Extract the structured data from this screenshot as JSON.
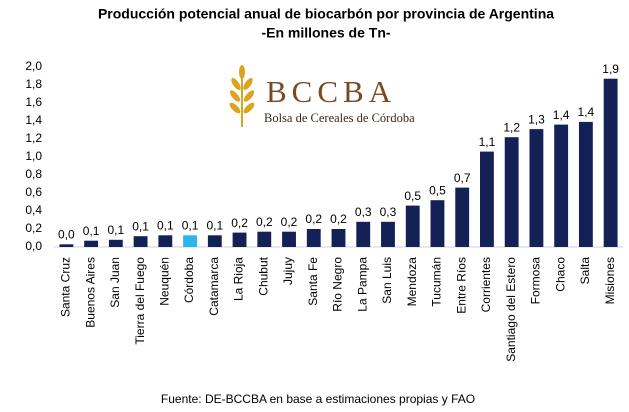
{
  "chart_data": {
    "type": "bar",
    "title": "Producción potencial anual de biocarbón por provincia de Argentina",
    "subtitle": "-En millones de Tn-",
    "source": "Fuente: DE-BCCBA en base a estimaciones propias y FAO",
    "logo": {
      "name": "BCCBA",
      "subtitle": "Bolsa de Cereales de Córdoba"
    },
    "categories": [
      "Santa Cruz",
      "Buenos Aires",
      "San Juan",
      "Tierra del Fuego",
      "Neuquén",
      "Córdoba",
      "Catamarca",
      "La Rioja",
      "Chubut",
      "Jujuy",
      "Santa Fe",
      "Río Negro",
      "La Pampa",
      "San Luis",
      "Mendoza",
      "Tucumán",
      "Entre Ríos",
      "Corrientes",
      "Santiago del Estero",
      "Formosa",
      "Chaco",
      "Salta",
      "Misiones"
    ],
    "values": [
      0.03,
      0.07,
      0.08,
      0.12,
      0.13,
      0.13,
      0.13,
      0.16,
      0.17,
      0.17,
      0.2,
      0.2,
      0.28,
      0.28,
      0.46,
      0.52,
      0.66,
      1.06,
      1.22,
      1.31,
      1.36,
      1.39,
      1.87
    ],
    "value_labels": [
      "0,0",
      "0,1",
      "0,1",
      "0,1",
      "0,1",
      "0,1",
      "0,1",
      "0,2",
      "0,2",
      "0,2",
      "0,2",
      "0,2",
      "0,3",
      "0,3",
      "0,5",
      "0,5",
      "0,7",
      "1,1",
      "1,2",
      "1,3",
      "1,4",
      "1,4",
      "1,9"
    ],
    "colors": [
      "#142157",
      "#142157",
      "#142157",
      "#142157",
      "#142157",
      "#29b6f0",
      "#142157",
      "#142157",
      "#142157",
      "#142157",
      "#142157",
      "#142157",
      "#142157",
      "#142157",
      "#142157",
      "#142157",
      "#142157",
      "#142157",
      "#142157",
      "#142157",
      "#142157",
      "#142157",
      "#142157"
    ],
    "ylim": [
      0,
      2
    ],
    "yticks": [
      {
        "value": 0,
        "label": "0,0"
      },
      {
        "value": 0.2,
        "label": "0,2"
      },
      {
        "value": 0.4,
        "label": "0,4"
      },
      {
        "value": 0.6,
        "label": "0,6"
      },
      {
        "value": 0.8,
        "label": "0,8"
      },
      {
        "value": 1,
        "label": "1,0"
      },
      {
        "value": 1.2,
        "label": "1,2"
      },
      {
        "value": 1.4,
        "label": "1,4"
      },
      {
        "value": 1.6,
        "label": "1,6"
      },
      {
        "value": 1.8,
        "label": "1,8"
      },
      {
        "value": 2,
        "label": "2,0"
      }
    ],
    "grid": false
  }
}
